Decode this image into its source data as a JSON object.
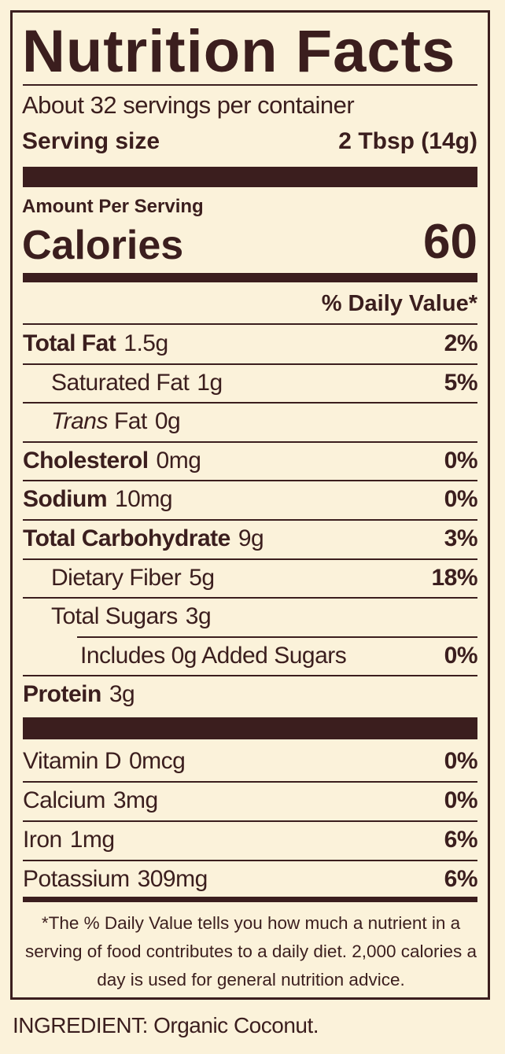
{
  "title": "Nutrition Facts",
  "servings": "About 32 servings per container",
  "serving_size": {
    "label": "Serving size",
    "value": "2 Tbsp (14g)"
  },
  "amount_per_serving": "Amount Per Serving",
  "calories": {
    "label": "Calories",
    "value": "60"
  },
  "daily_value_header": "% Daily Value*",
  "nutrients": [
    {
      "name": "Total Fat",
      "amount": "1.5g",
      "dv": "2%",
      "level": 0
    },
    {
      "name": "Saturated Fat",
      "amount": "1g",
      "dv": "5%",
      "level": 1
    },
    {
      "italic": "Trans",
      "name": "Fat",
      "amount": "0g",
      "level": 1
    },
    {
      "name": "Cholesterol",
      "amount": "0mg",
      "dv": "0%",
      "level": 0
    },
    {
      "name": "Sodium",
      "amount": "10mg",
      "dv": "0%",
      "level": 0
    },
    {
      "name": "Total Carbohydrate",
      "amount": "9g",
      "dv": "3%",
      "level": 0
    },
    {
      "name": "Dietary Fiber",
      "amount": "5g",
      "dv": "18%",
      "level": 1
    },
    {
      "name": "Total Sugars",
      "amount": "3g",
      "level": 1
    },
    {
      "name": "Includes 0g Added Sugars",
      "dv": "0%",
      "level": 2
    },
    {
      "name": "Protein",
      "amount": "3g",
      "level": 0
    }
  ],
  "vitamins": [
    {
      "name": "Vitamin D",
      "amount": "0mcg",
      "dv": "0%"
    },
    {
      "name": "Calcium",
      "amount": "3mg",
      "dv": "0%"
    },
    {
      "name": "Iron",
      "amount": "1mg",
      "dv": "6%"
    },
    {
      "name": "Potassium",
      "amount": "309mg",
      "dv": "6%"
    }
  ],
  "footnote": "*The % Daily Value tells you how much a nutrient in a serving of food contributes to a daily diet. 2,000 calories a day is used for general nutrition advice.",
  "ingredients": "INGREDIENT: Organic Coconut."
}
